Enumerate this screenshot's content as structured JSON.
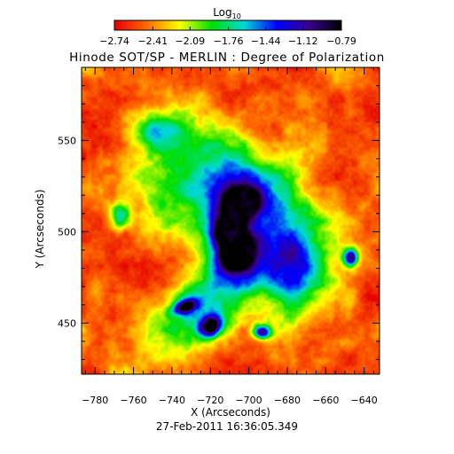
{
  "chart_data": {
    "type": "heatmap",
    "title": "Hinode SOT/SP - MERLIN : Degree of Polarization",
    "subtitle": "",
    "xlabel": "X (Arcseconds)",
    "ylabel": "Y (Arcseconds)",
    "footer": "27-Feb-2011 16:36:05.349",
    "xlim": [
      -787,
      -632
    ],
    "ylim": [
      422,
      590
    ],
    "x_ticks": [
      -780,
      -760,
      -740,
      -720,
      -700,
      -680,
      -660,
      -640
    ],
    "y_ticks": [
      450,
      500,
      550
    ],
    "colorbar": {
      "label_base": "Log",
      "label_sub": "10",
      "range": [
        -2.74,
        -0.79
      ],
      "tick_values": [
        -2.74,
        -2.41,
        -2.09,
        -1.76,
        -1.44,
        -1.12,
        -0.79
      ],
      "colormap": [
        "#e60000",
        "#ff6a00",
        "#ffff00",
        "#00e000",
        "#00d8d8",
        "#0000ff",
        "#3a008c",
        "#000000"
      ]
    },
    "background_log_value": -2.55,
    "features": [
      {
        "x": -706,
        "y": 515,
        "value": -1.25,
        "sigma_x": 22,
        "sigma_y": 32,
        "angle": 50
      },
      {
        "x": -715,
        "y": 465,
        "value": -1.65,
        "sigma_x": 30,
        "sigma_y": 12,
        "angle": 35
      },
      {
        "x": -704,
        "y": 516,
        "value": -1.0,
        "sigma_x": 6.5,
        "sigma_y": 5.5,
        "angle": 40
      },
      {
        "x": -710,
        "y": 499,
        "value": -1.0,
        "sigma_x": 5.5,
        "sigma_y": 6.0,
        "angle": 20
      },
      {
        "x": -707,
        "y": 487,
        "value": -1.0,
        "sigma_x": 6.5,
        "sigma_y": 5.5,
        "angle": 30
      },
      {
        "x": -720,
        "y": 448,
        "value": -1.1,
        "sigma_x": 4.5,
        "sigma_y": 3.5,
        "angle": 40
      },
      {
        "x": -647,
        "y": 486,
        "value": -1.1,
        "sigma_x": 2.5,
        "sigma_y": 3.5,
        "angle": 0
      },
      {
        "x": -733,
        "y": 459,
        "value": -1.3,
        "sigma_x": 4.5,
        "sigma_y": 2.5,
        "angle": 20
      },
      {
        "x": -693,
        "y": 445,
        "value": -1.3,
        "sigma_x": 3.0,
        "sigma_y": 2.5,
        "angle": 0
      },
      {
        "x": -767,
        "y": 508,
        "value": -1.65,
        "sigma_x": 4.0,
        "sigma_y": 5.0,
        "angle": 0
      },
      {
        "x": -748,
        "y": 555,
        "value": -1.9,
        "sigma_x": 10.0,
        "sigma_y": 8.0,
        "angle": 0
      },
      {
        "x": -675,
        "y": 470,
        "value": -1.9,
        "sigma_x": 10.0,
        "sigma_y": 18.0,
        "angle": 0
      }
    ]
  }
}
